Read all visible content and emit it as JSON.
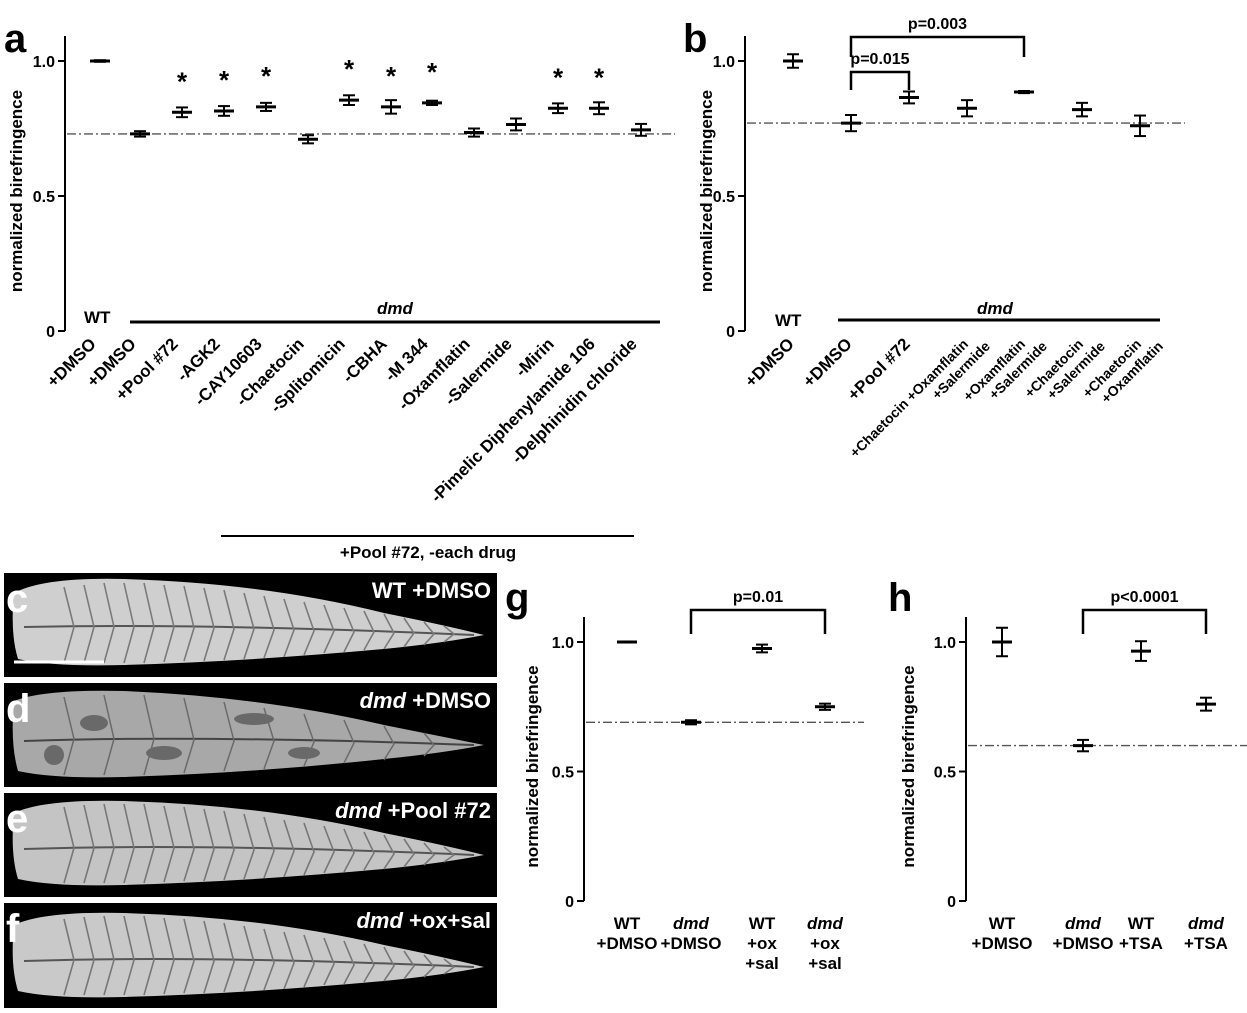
{
  "panels": {
    "a": "a",
    "b": "b",
    "c": "c",
    "d": "d",
    "e": "e",
    "f": "f",
    "g": "g",
    "h": "h"
  },
  "chart_data": [
    {
      "id": "a",
      "type": "scatter",
      "ylabel": "normalized birefringence",
      "ylim": [
        0,
        1.0
      ],
      "yticks": [
        "0",
        "0.5",
        "1.0"
      ],
      "categories": [
        "+DMSO",
        "+DMSO",
        "+Pool #72",
        "-AGK2",
        "-CAY10603",
        "-Chaetocin",
        "-Splitomicin",
        "-CBHA",
        "-M 344",
        "-Oxamflatin",
        "-Salermide",
        "-Mirin",
        "-Pimelic Diphenylamide 106",
        "-Delphinidin chloride"
      ],
      "mean": [
        1.0,
        0.73,
        0.81,
        0.815,
        0.83,
        0.71,
        0.855,
        0.83,
        0.845,
        0.735,
        0.765,
        0.825,
        0.825,
        0.745
      ],
      "err": [
        0.003,
        0.01,
        0.018,
        0.018,
        0.015,
        0.015,
        0.018,
        0.025,
        0.008,
        0.015,
        0.022,
        0.018,
        0.022,
        0.022
      ],
      "significant": [
        false,
        false,
        true,
        true,
        true,
        false,
        true,
        true,
        true,
        false,
        false,
        true,
        true,
        false
      ],
      "star_symbol": "*",
      "reference_line": 0.73,
      "group_labels": {
        "wt": "WT",
        "dmd": "dmd",
        "bottom": "+Pool #72, -each drug"
      }
    },
    {
      "id": "b",
      "type": "scatter",
      "ylabel": "normalized birefringence",
      "ylim": [
        0,
        1.0
      ],
      "yticks": [
        "0",
        "0.5",
        "1.0"
      ],
      "categories": [
        [
          "+DMSO"
        ],
        [
          "+DMSO"
        ],
        [
          "+Pool #72"
        ],
        [
          "+Chaetocin +Oxamflatin",
          "+Salermide"
        ],
        [
          "+Oxamflatin",
          "+Salermide"
        ],
        [
          "+Chaetocin",
          "+Salermide"
        ],
        [
          "+Chaetocin",
          "+Oxamflatin"
        ]
      ],
      "mean": [
        1.0,
        0.77,
        0.865,
        0.825,
        0.885,
        0.82,
        0.76
      ],
      "err": [
        0.025,
        0.03,
        0.022,
        0.03,
        0.004,
        0.025,
        0.038
      ],
      "reference_line": 0.77,
      "brackets": [
        {
          "label": "p=0.015",
          "from": 1,
          "to": 2
        },
        {
          "label": "p=0.003",
          "from": 1,
          "to": 4
        }
      ],
      "group_labels": {
        "wt": "WT",
        "dmd": "dmd"
      }
    },
    {
      "id": "g",
      "type": "scatter",
      "ylabel": "normalized birefringence",
      "ylim": [
        0,
        1.0
      ],
      "yticks": [
        "0",
        "0.5",
        "1.0"
      ],
      "categories": [
        [
          "WT",
          "+DMSO"
        ],
        [
          "dmd",
          "+DMSO"
        ],
        [
          "WT",
          "+ox",
          "+sal"
        ],
        [
          "dmd",
          "+ox",
          "+sal"
        ]
      ],
      "mean": [
        1.0,
        0.69,
        0.975,
        0.75
      ],
      "err": [
        0.002,
        0.008,
        0.015,
        0.012
      ],
      "reference_line": 0.69,
      "brackets": [
        {
          "label": "p=0.01",
          "from": 1,
          "to": 3
        }
      ]
    },
    {
      "id": "h",
      "type": "scatter",
      "ylabel": "normalized birefringence",
      "ylim": [
        0,
        1.0
      ],
      "yticks": [
        "0",
        "0.5",
        "1.0"
      ],
      "categories": [
        [
          "WT",
          "+DMSO"
        ],
        [
          "dmd",
          "+DMSO"
        ],
        [
          "WT",
          "+TSA"
        ],
        [
          "dmd",
          "+TSA"
        ]
      ],
      "mean": [
        1.0,
        0.6,
        0.965,
        0.76
      ],
      "err": [
        0.055,
        0.022,
        0.038,
        0.025
      ],
      "reference_line": 0.6,
      "brackets": [
        {
          "label": "p<0.0001",
          "from": 1,
          "to": 3
        }
      ]
    }
  ],
  "images": [
    {
      "id": "c",
      "label_genotype": "",
      "label_treatment": "WT +DMSO"
    },
    {
      "id": "d",
      "label_genotype": "dmd",
      "label_treatment": " +DMSO"
    },
    {
      "id": "e",
      "label_genotype": "dmd",
      "label_treatment": " +Pool #72"
    },
    {
      "id": "f",
      "label_genotype": "dmd",
      "label_treatment": " +ox+sal"
    }
  ],
  "colors": {
    "ink": "#000000",
    "image_bg": "#000000",
    "muscle": "#e6e6e6"
  }
}
